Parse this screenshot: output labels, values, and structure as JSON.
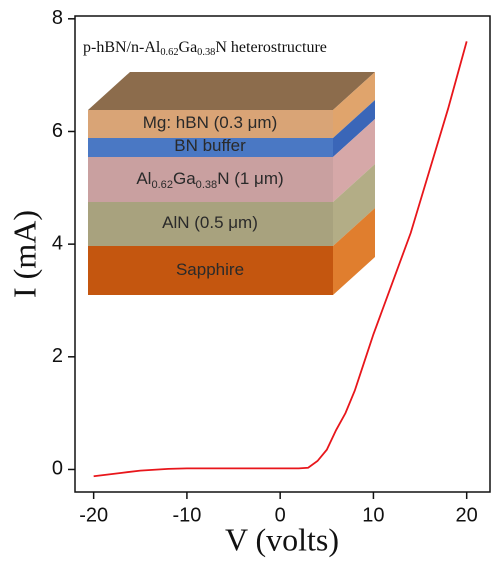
{
  "chart_data": {
    "type": "line",
    "xlabel": "V (volts)",
    "ylabel": "I (mA)",
    "x": [
      -20,
      -17,
      -15,
      -12,
      -10,
      -5,
      0,
      2,
      3,
      4,
      5,
      6,
      7,
      8,
      9,
      10,
      12,
      14,
      16,
      18,
      20
    ],
    "series": [
      {
        "color": "#e8161b",
        "values": [
          -0.12,
          -0.06,
          -0.02,
          0.01,
          0.02,
          0.02,
          0.02,
          0.02,
          0.03,
          0.15,
          0.35,
          0.7,
          1.0,
          1.4,
          1.9,
          2.4,
          3.3,
          4.2,
          5.3,
          6.4,
          7.6
        ]
      }
    ],
    "xlim": [
      -22,
      22.5
    ],
    "ylim": [
      -0.4,
      8.05
    ],
    "xticks": [
      -20,
      -10,
      0,
      10,
      20
    ],
    "yticks": [
      0,
      2,
      4,
      6,
      8
    ],
    "inset_title": [
      "p-hBN/n-Al",
      "0.62",
      "Ga",
      "0.38",
      "N heterostructure"
    ],
    "layers": [
      [
        "Mg: hBN (0.3 μm)"
      ],
      [
        "BN buffer"
      ],
      [
        "Al",
        "0.62",
        "Ga",
        "0.38",
        "N  (1 μm)"
      ],
      [
        "AlN (0.5 μm)"
      ],
      [
        "Sapphire"
      ]
    ]
  }
}
